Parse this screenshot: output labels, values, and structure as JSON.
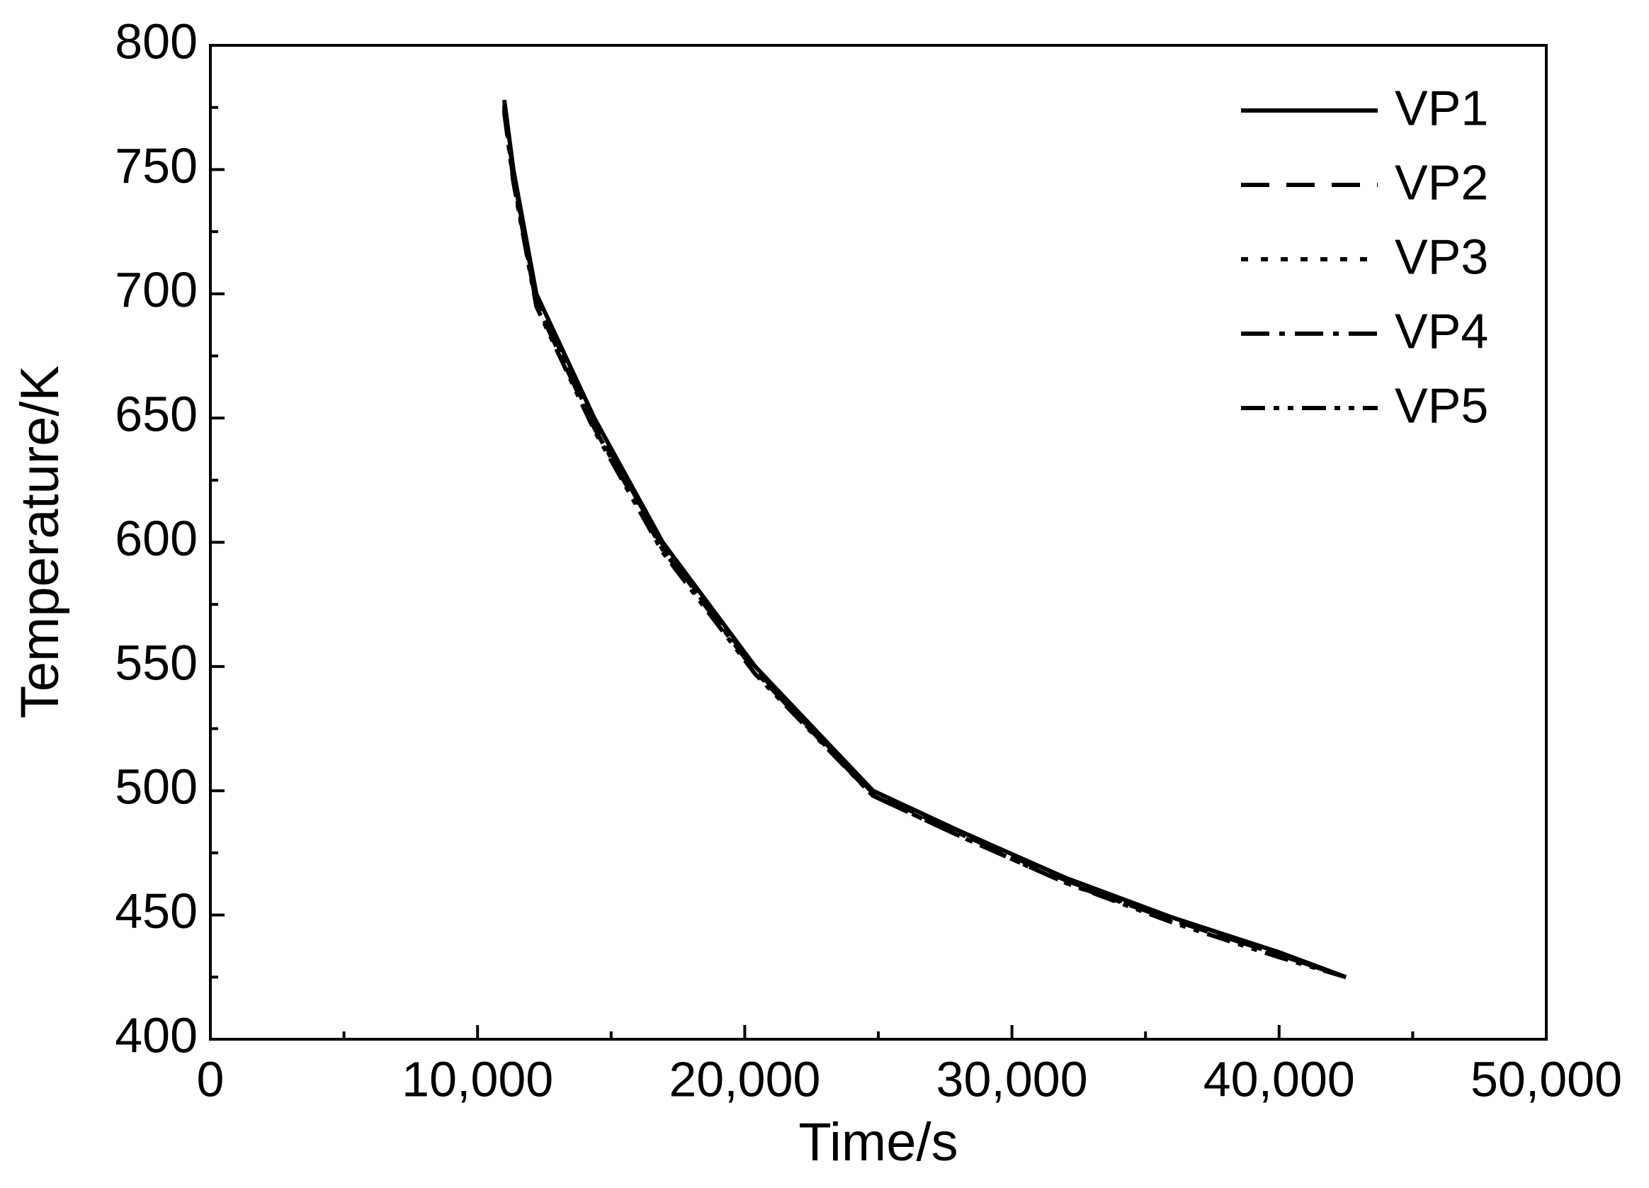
{
  "chart_data": {
    "type": "line",
    "xlabel": "Time/s",
    "ylabel": "Temperature/K",
    "xlim": [
      0,
      50000
    ],
    "ylim": [
      400,
      800
    ],
    "xticks": [
      0,
      {
        "value": 10000,
        "label": "10,000"
      },
      {
        "value": 20000,
        "label": "20,000"
      },
      {
        "value": 30000,
        "label": "30,000"
      },
      {
        "value": 40000,
        "label": "40,000"
      },
      {
        "value": 50000,
        "label": "50,000"
      }
    ],
    "yticks": [
      400,
      450,
      500,
      550,
      600,
      650,
      700,
      750,
      800
    ],
    "legend": "upper right",
    "series": [
      {
        "name": "VP1",
        "color": "#000000",
        "dash": "solid",
        "x": [
          11000,
          11340,
          12200,
          14370,
          16930,
          20390,
          24800,
          28000,
          32000,
          36000,
          40000,
          42500
        ],
        "values": [
          778,
          750,
          700,
          650,
          600,
          550,
          500,
          484,
          465,
          449,
          435,
          425
        ]
      },
      {
        "name": "VP2",
        "color": "#000000",
        "dash": "dashed",
        "x": [
          11000,
          11340,
          12200,
          14370,
          16930,
          20390,
          24800,
          28000,
          32000,
          36000,
          40000,
          42500
        ],
        "values": [
          776,
          748,
          698,
          648,
          599,
          549,
          499,
          483,
          464,
          448,
          434,
          425
        ]
      },
      {
        "name": "VP3",
        "color": "#000000",
        "dash": "dotted",
        "x": [
          11000,
          11340,
          12200,
          14370,
          16930,
          20390,
          24800,
          28000,
          32000,
          36000,
          40000,
          42500
        ],
        "values": [
          775,
          747,
          697,
          647,
          598,
          548,
          499,
          483,
          464,
          448,
          434,
          425
        ]
      },
      {
        "name": "VP4",
        "color": "#000000",
        "dash": "dashdot",
        "x": [
          11000,
          11340,
          12200,
          14370,
          16930,
          20390,
          24800,
          28000,
          32000,
          36000,
          40000,
          42500
        ],
        "values": [
          774,
          746,
          696,
          646,
          597,
          548,
          498,
          482,
          463,
          448,
          434,
          425
        ]
      },
      {
        "name": "VP5",
        "color": "#000000",
        "dash": "dashdotdot",
        "x": [
          11000,
          11340,
          12200,
          14370,
          16930,
          20390,
          24800,
          28000,
          32000,
          36000,
          40000,
          42500
        ],
        "values": [
          773,
          745,
          695,
          645,
          596,
          547,
          498,
          482,
          463,
          447,
          433,
          425
        ]
      }
    ]
  }
}
